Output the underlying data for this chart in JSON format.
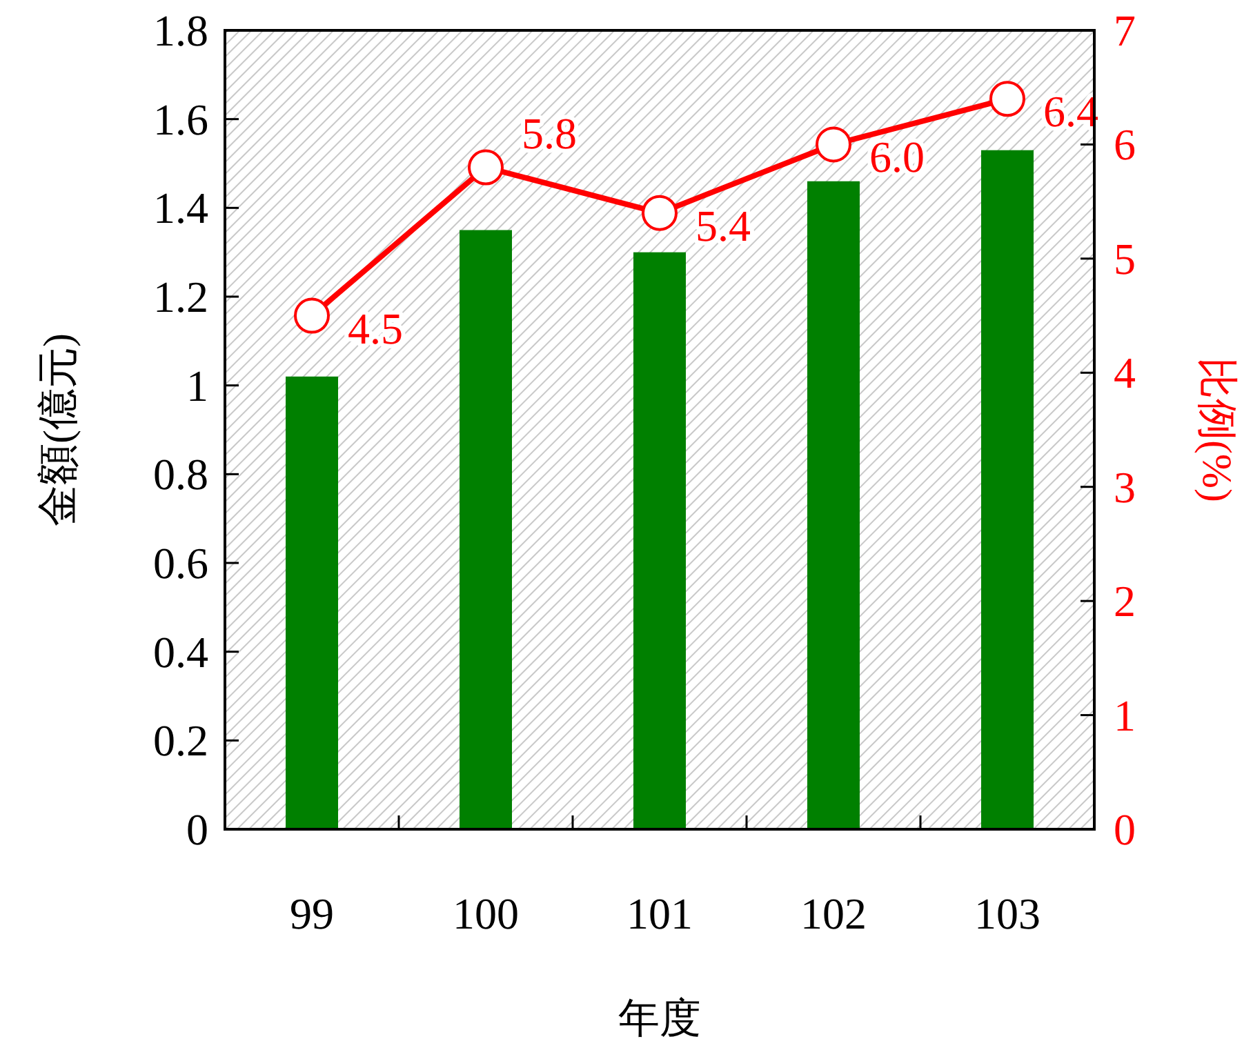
{
  "chart_data": {
    "type": "bar",
    "xlabel": "年度",
    "ylabel": "金額(億元)",
    "y2label": "比例(%)",
    "categories": [
      "99",
      "100",
      "101",
      "102",
      "103"
    ],
    "series": [
      {
        "color": "#008000",
        "values": [
          1.02,
          1.35,
          1.3,
          1.46,
          1.53
        ]
      },
      {
        "type": "line",
        "axis": "y2",
        "color": "#ff0000",
        "marker": "circle",
        "line_style": "solid",
        "values": [
          4.5,
          5.8,
          5.4,
          6.0,
          6.4
        ],
        "value_labels": [
          "4.5",
          "5.8",
          "5.4",
          "6.0",
          "6.4"
        ]
      }
    ],
    "ylim": [
      0,
      1.8
    ],
    "yticks": [
      0,
      0.2,
      0.4,
      0.6,
      0.8,
      1,
      1.2,
      1.4,
      1.6,
      1.8
    ],
    "y2lim": [
      0,
      7
    ],
    "y2ticks": [
      0,
      1,
      2,
      3,
      4,
      5,
      6,
      7
    ],
    "grid": false
  }
}
